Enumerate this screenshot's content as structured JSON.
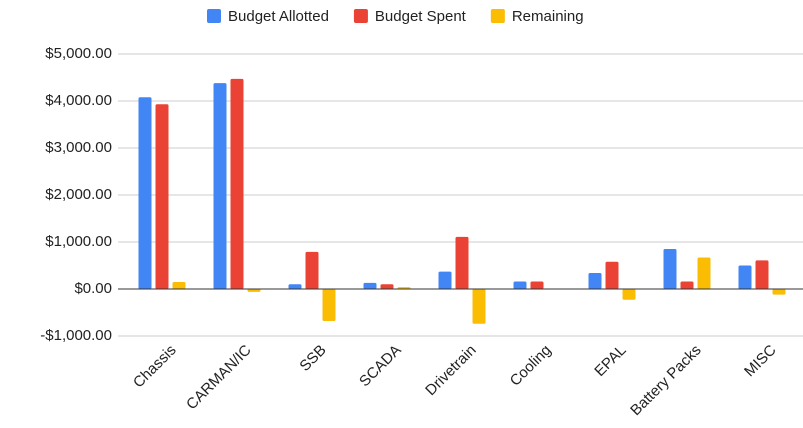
{
  "chart_data": {
    "type": "bar",
    "categories": [
      "Chassis",
      "CARMAN/IC",
      "SSB",
      "SCADA",
      "Drivetrain",
      "Cooling",
      "EPAL",
      "Battery Packs",
      "MISC"
    ],
    "series": [
      {
        "name": "Budget Allotted",
        "color": "#4285f4",
        "values": [
          4080,
          4380,
          100,
          130,
          370,
          160,
          340,
          850,
          500
        ]
      },
      {
        "name": "Budget Spent",
        "color": "#ea4335",
        "values": [
          3930,
          4470,
          790,
          100,
          1110,
          160,
          580,
          160,
          610
        ]
      },
      {
        "name": "Remaining",
        "color": "#fbbc04",
        "values": [
          150,
          -60,
          -680,
          40,
          -740,
          0,
          -230,
          670,
          -120
        ]
      }
    ],
    "ylim": [
      -1000,
      5000
    ],
    "yticks": [
      {
        "value": -1000,
        "label": "-$1,000.00"
      },
      {
        "value": 0,
        "label": "$0.00"
      },
      {
        "value": 1000,
        "label": "$1,000.00"
      },
      {
        "value": 2000,
        "label": "$2,000.00"
      },
      {
        "value": 3000,
        "label": "$3,000.00"
      },
      {
        "value": 4000,
        "label": "$4,000.00"
      },
      {
        "value": 5000,
        "label": "$5,000.00"
      }
    ],
    "grid": true,
    "legend": "top"
  }
}
